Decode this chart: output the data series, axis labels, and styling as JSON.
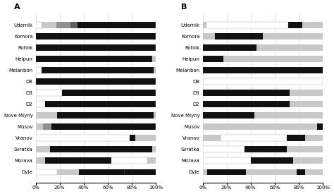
{
  "categories": [
    "Udernik",
    "Komora",
    "Rohlik",
    "Helpun",
    "Melanbon",
    "D8",
    "D3",
    "D2",
    "Nove Mlyny",
    "Musov",
    "Vranov",
    "Svratka",
    "Morava",
    "Dyje"
  ],
  "A": {
    "white": [
      0.05,
      0.0,
      0.0,
      0.0,
      0.05,
      0.0,
      0.22,
      0.08,
      0.0,
      0.0,
      0.78,
      0.04,
      0.08,
      0.18
    ],
    "lgray": [
      0.12,
      0.0,
      0.0,
      0.0,
      0.0,
      0.0,
      0.0,
      0.0,
      0.18,
      0.05,
      0.0,
      0.12,
      0.0,
      0.18
    ],
    "mgray": [
      0.12,
      0.0,
      0.0,
      0.0,
      0.0,
      0.0,
      0.0,
      0.0,
      0.0,
      0.07,
      0.0,
      0.0,
      0.0,
      0.0
    ],
    "dgray": [
      0.06,
      0.0,
      0.0,
      0.0,
      0.0,
      0.0,
      0.0,
      0.0,
      0.0,
      0.0,
      0.0,
      0.0,
      0.0,
      0.0
    ],
    "black": [
      0.65,
      1.0,
      1.0,
      1.0,
      0.95,
      1.0,
      0.78,
      0.92,
      0.82,
      0.88,
      0.05,
      0.84,
      0.55,
      0.38
    ],
    "lgray2": [
      0.0,
      0.0,
      0.0,
      0.0,
      0.0,
      0.0,
      0.0,
      0.0,
      0.0,
      0.0,
      0.17,
      0.0,
      0.0,
      0.0
    ],
    "white2": [
      0.0,
      0.0,
      0.0,
      0.0,
      0.0,
      0.0,
      0.0,
      0.0,
      0.0,
      0.0,
      0.0,
      0.0,
      0.3,
      0.0
    ],
    "lgray3": [
      0.0,
      0.0,
      0.0,
      0.0,
      0.0,
      0.0,
      0.0,
      0.0,
      0.0,
      0.0,
      0.0,
      0.0,
      0.07,
      0.0
    ],
    "black2": [
      0.0,
      0.0,
      0.0,
      0.0,
      0.0,
      0.0,
      0.0,
      0.0,
      0.0,
      0.0,
      0.0,
      0.0,
      0.0,
      0.26
    ]
  },
  "B": {
    "white": [
      0.0,
      0.1,
      0.0,
      0.0,
      0.0,
      0.0,
      0.0,
      0.0,
      0.0,
      0.0,
      0.0,
      0.0,
      0.0,
      0.04
    ],
    "lgray": [
      0.03,
      0.0,
      0.0,
      0.0,
      0.0,
      1.0,
      0.0,
      0.0,
      0.0,
      0.05,
      0.15,
      0.0,
      0.0,
      0.15
    ],
    "white2": [
      0.68,
      0.0,
      0.0,
      0.0,
      0.0,
      0.0,
      0.0,
      0.0,
      0.0,
      0.0,
      0.55,
      0.35,
      0.4,
      0.0
    ],
    "black": [
      0.12,
      0.4,
      0.45,
      0.17,
      1.0,
      0.0,
      0.72,
      0.72,
      0.43,
      0.0,
      0.15,
      0.35,
      0.35,
      0.32
    ],
    "lgray2": [
      0.17,
      0.5,
      0.55,
      0.83,
      0.0,
      0.0,
      0.28,
      0.28,
      0.57,
      0.9,
      0.15,
      0.3,
      0.25,
      0.42
    ],
    "black2": [
      0.0,
      0.0,
      0.0,
      0.0,
      0.0,
      0.0,
      0.0,
      0.0,
      0.0,
      0.05,
      0.0,
      0.0,
      0.0,
      0.07
    ]
  },
  "colors": {
    "white": "#ffffff",
    "lgray": "#c0c0c0",
    "mgray": "#888888",
    "dgray": "#606060",
    "black": "#111111",
    "lgray2": "#d8d8d8",
    "white2": "#ffffff",
    "lgray3": "#c0c0c0",
    "black2": "#111111"
  },
  "title_A": "A",
  "title_B": "B"
}
